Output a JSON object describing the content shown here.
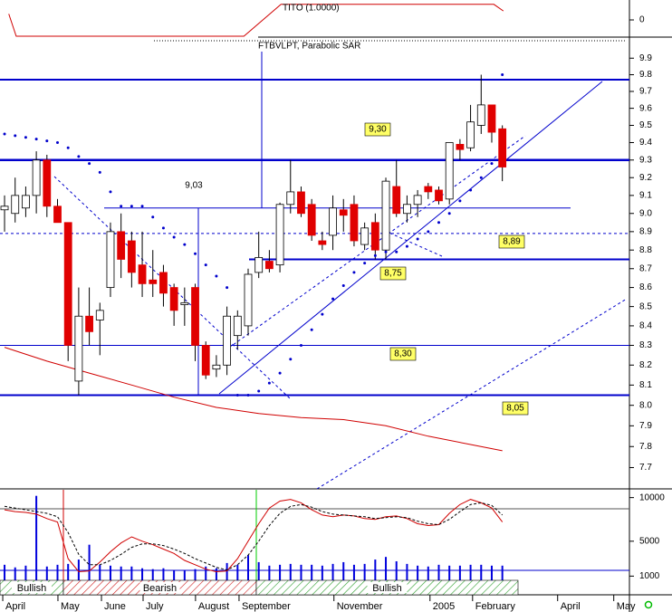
{
  "chart_data": [
    {
      "type": "line",
      "ylim": [
        -1,
        1
      ],
      "yticks": [
        0
      ],
      "series": [
        {
          "name": "TITO (1.0000)",
          "color": "#d00000",
          "x": [
            0.4,
            1.1,
            22.6,
            26.1,
            46.2,
            47.1
          ],
          "values": [
            0.3,
            -0.82,
            -0.82,
            0.78,
            0.78,
            0.45
          ]
        }
      ]
    },
    {
      "type": "candlestick",
      "title": "FTBVLPT, Parabolic SAR",
      "log": true,
      "xlim": [
        -0.43,
        59
      ],
      "ylim": [
        7.6,
        9.94
      ],
      "yticks": [
        9.9,
        9.8,
        9.7,
        9.6,
        9.5,
        9.4,
        9.3,
        9.2,
        9.1,
        {
          "value": 9,
          "label": "9.0"
        },
        8.9,
        8.8,
        8.7,
        8.6,
        8.5,
        8.4,
        8.3,
        8.2,
        8.1,
        {
          "value": 8,
          "label": "8.0"
        },
        7.9,
        7.8,
        7.7
      ],
      "up_color": "#ffffff",
      "down_color": "#e00000",
      "open": [
        9.02,
        9.0,
        9.03,
        9.1,
        9.3,
        9.04,
        8.95,
        8.12,
        8.45,
        8.43,
        8.6,
        8.9,
        8.85,
        8.72,
        8.64,
        8.68,
        8.6,
        8.51,
        8.6,
        8.3,
        8.18,
        8.2,
        8.35,
        8.4,
        8.68,
        8.74,
        8.72,
        9.05,
        9.12,
        9.05,
        8.85,
        8.88,
        9.02,
        9.05,
        8.83,
        8.95,
        8.8,
        9.15,
        9.0,
        9.05,
        9.15,
        9.13,
        9.08,
        9.39,
        9.37,
        9.5,
        9.62,
        9.48
      ],
      "high": [
        9.1,
        9.2,
        9.15,
        9.35,
        9.33,
        9.08,
        8.95,
        8.6,
        8.6,
        8.52,
        8.95,
        9.0,
        8.9,
        8.9,
        8.8,
        8.72,
        8.62,
        8.6,
        8.62,
        8.32,
        8.25,
        8.5,
        8.48,
        8.7,
        8.9,
        8.8,
        9.06,
        9.3,
        9.15,
        9.08,
        8.9,
        9.1,
        9.08,
        9.1,
        8.95,
        9.0,
        9.2,
        9.3,
        9.1,
        9.13,
        9.17,
        9.15,
        9.4,
        9.42,
        9.62,
        9.8,
        9.62,
        9.5
      ],
      "low": [
        8.9,
        8.95,
        8.98,
        9.0,
        8.98,
        8.95,
        8.22,
        8.05,
        8.3,
        8.25,
        8.55,
        8.65,
        8.6,
        8.55,
        8.55,
        8.5,
        8.4,
        8.4,
        8.22,
        8.13,
        8.14,
        8.15,
        8.28,
        8.35,
        8.65,
        8.68,
        8.68,
        9.0,
        8.98,
        8.85,
        8.8,
        8.8,
        8.9,
        8.82,
        8.8,
        8.75,
        8.75,
        8.98,
        8.95,
        8.98,
        9.08,
        9.05,
        9.05,
        9.3,
        9.35,
        9.45,
        9.4,
        9.18
      ],
      "close": [
        9.04,
        9.1,
        9.1,
        9.3,
        9.04,
        8.95,
        8.3,
        8.45,
        8.37,
        8.48,
        8.9,
        8.75,
        8.68,
        8.62,
        8.62,
        8.57,
        8.48,
        8.52,
        8.3,
        8.15,
        8.2,
        8.45,
        8.45,
        8.67,
        8.76,
        8.7,
        9.05,
        9.12,
        9.0,
        8.88,
        8.83,
        9.03,
        8.99,
        8.85,
        8.92,
        8.8,
        9.18,
        9.0,
        9.05,
        9.1,
        9.12,
        9.07,
        9.4,
        9.36,
        9.52,
        9.62,
        9.46,
        9.26
      ],
      "sar": {
        "color": "#0000cc",
        "values": [
          9.45,
          9.44,
          9.43,
          9.42,
          9.41,
          9.4,
          9.37,
          9.32,
          9.28,
          9.23,
          9.12,
          9.04,
          9.04,
          9.04,
          8.98,
          8.92,
          8.87,
          8.83,
          8.78,
          8.72,
          8.66,
          8.6,
          8.05,
          8.05,
          8.07,
          8.11,
          8.16,
          8.23,
          8.3,
          8.38,
          8.46,
          8.54,
          8.61,
          8.68,
          8.73,
          8.77,
          8.79,
          8.79,
          8.82,
          8.86,
          8.9,
          8.95,
          9.0,
          9.07,
          9.13,
          9.2,
          9.28,
          9.8
        ]
      },
      "moving_average": {
        "color": "#d00000",
        "x": [
          0,
          4,
          8,
          12,
          16,
          20,
          24,
          28,
          32,
          36,
          40,
          44,
          47
        ],
        "values": [
          8.29,
          8.22,
          8.16,
          8.1,
          8.04,
          7.99,
          7.96,
          7.94,
          7.93,
          7.9,
          7.85,
          7.81,
          7.78
        ]
      },
      "levels": [
        {
          "value": 9.77
        },
        {
          "value": 9.3,
          "label": "9,30"
        },
        {
          "value": 9.03,
          "label": "9,03"
        },
        {
          "value": 8.89,
          "label": "8,89"
        },
        {
          "value": 8.75,
          "label": "8,75"
        },
        {
          "value": 8.3,
          "label": "8,30"
        },
        {
          "value": 8.05,
          "label": "8,05"
        }
      ],
      "level_color": "#0000cc"
    },
    {
      "type": "oscillator",
      "ylim": [
        0,
        11000
      ],
      "yticks": [
        {
          "value": 10000,
          "label": "10000"
        },
        5000,
        1000
      ],
      "xticks": [
        {
          "value": -0.17,
          "label": "April"
        },
        {
          "value": 5.04,
          "label": "May"
        },
        {
          "value": 9.15,
          "label": "June"
        },
        {
          "value": 13.08,
          "label": "July"
        },
        {
          "value": 18.03,
          "label": "August"
        },
        {
          "value": 22.14,
          "label": "September"
        },
        {
          "value": 31.1,
          "label": "November"
        },
        {
          "value": 40.17,
          "label": "2005"
        },
        {
          "value": 44.19,
          "label": "February"
        },
        {
          "value": 52.22,
          "label": "April"
        },
        {
          "value": 57.52,
          "label": "May"
        }
      ],
      "series": [
        {
          "color": "#d00000",
          "values": [
            8600,
            8400,
            8300,
            8100,
            7600,
            7200,
            3000,
            1500,
            1600,
            2600,
            3800,
            4800,
            5500,
            5000,
            4600,
            4100,
            3600,
            2800,
            2300,
            1800,
            1500,
            1600,
            3000,
            5000,
            7000,
            8800,
            9600,
            9800,
            9400,
            8600,
            8000,
            7800,
            8000,
            7900,
            7600,
            7500,
            7800,
            7900,
            7600,
            7000,
            6800,
            6900,
            8200,
            9200,
            9800,
            9400,
            8800,
            7200
          ]
        },
        {
          "color": "#000000",
          "dashed": true,
          "values": [
            9000,
            8800,
            8600,
            8400,
            8200,
            7800,
            6000,
            3500,
            2300,
            2300,
            2800,
            3500,
            4300,
            4700,
            4700,
            4500,
            4100,
            3600,
            3000,
            2500,
            2000,
            1700,
            2300,
            3400,
            5000,
            6800,
            8200,
            9000,
            9200,
            8900,
            8400,
            8100,
            8000,
            7900,
            7800,
            7600,
            7700,
            7800,
            7700,
            7300,
            7000,
            6900,
            7500,
            8400,
            9200,
            9400,
            9100,
            8000
          ]
        }
      ],
      "volume": {
        "color": "#0000dd",
        "values": [
          2300,
          2000,
          2200,
          10200,
          2100,
          2300,
          2400,
          2900,
          4600,
          2300,
          2200,
          2100,
          2100,
          1900,
          1800,
          1900,
          1700,
          1700,
          1800,
          2100,
          1900,
          2500,
          2300,
          3400,
          2600,
          2200,
          2300,
          2400,
          2300,
          2300,
          2200,
          2400,
          2600,
          2300,
          2400,
          2900,
          3200,
          2700,
          2400,
          2200,
          2100,
          2300,
          2200,
          2200,
          2300,
          2300,
          2200,
          2200
        ]
      },
      "signals": [
        "Bullish",
        "Bearish",
        "Bullish"
      ]
    }
  ]
}
